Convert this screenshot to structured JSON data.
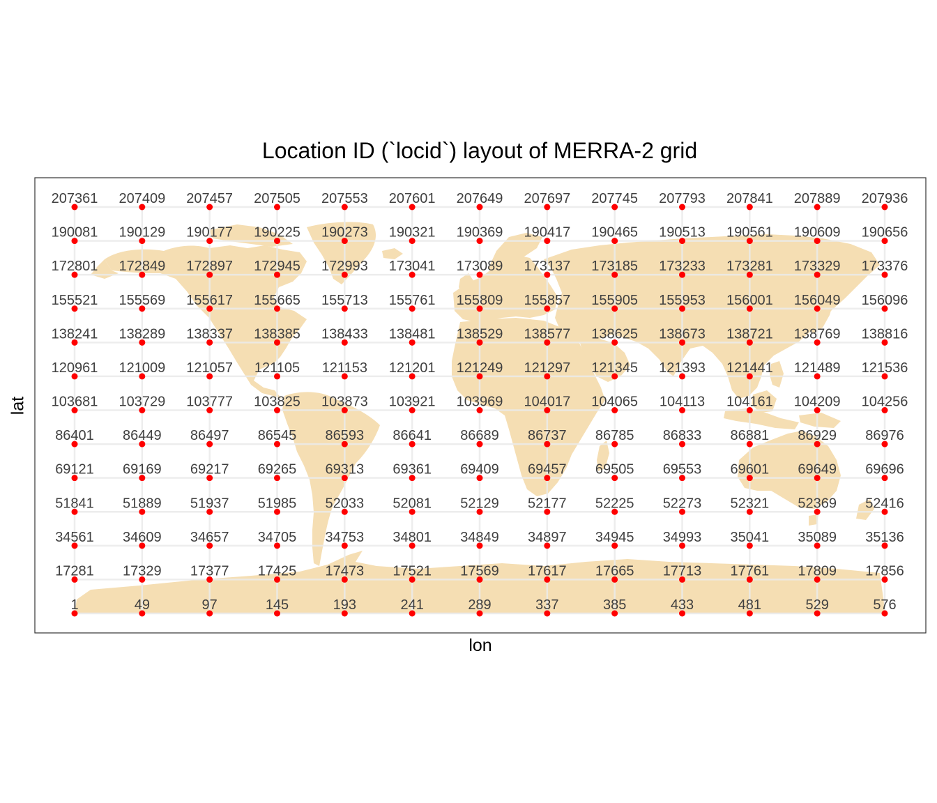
{
  "chart_data": {
    "type": "scatter",
    "title": "Location ID (`locid`) layout of MERRA-2 grid",
    "xlabel": "lon",
    "ylabel": "lat",
    "grid": true,
    "point_color": "#ff0000",
    "land_color": "#f5deb3",
    "gridline_color": "#ebebeb",
    "panel_border_color": "#333333",
    "label_color": "#404040",
    "rows": [
      [
        "207361",
        "207409",
        "207457",
        "207505",
        "207553",
        "207601",
        "207649",
        "207697",
        "207745",
        "207793",
        "207841",
        "207889",
        "207936"
      ],
      [
        "190081",
        "190129",
        "190177",
        "190225",
        "190273",
        "190321",
        "190369",
        "190417",
        "190465",
        "190513",
        "190561",
        "190609",
        "190656"
      ],
      [
        "172801",
        "172849",
        "172897",
        "172945",
        "172993",
        "173041",
        "173089",
        "173137",
        "173185",
        "173233",
        "173281",
        "173329",
        "173376"
      ],
      [
        "155521",
        "155569",
        "155617",
        "155665",
        "155713",
        "155761",
        "155809",
        "155857",
        "155905",
        "155953",
        "156001",
        "156049",
        "156096"
      ],
      [
        "138241",
        "138289",
        "138337",
        "138385",
        "138433",
        "138481",
        "138529",
        "138577",
        "138625",
        "138673",
        "138721",
        "138769",
        "138816"
      ],
      [
        "120961",
        "121009",
        "121057",
        "121105",
        "121153",
        "121201",
        "121249",
        "121297",
        "121345",
        "121393",
        "121441",
        "121489",
        "121536"
      ],
      [
        "103681",
        "103729",
        "103777",
        "103825",
        "103873",
        "103921",
        "103969",
        "104017",
        "104065",
        "104113",
        "104161",
        "104209",
        "104256"
      ],
      [
        "86401",
        "86449",
        "86497",
        "86545",
        "86593",
        "86641",
        "86689",
        "86737",
        "86785",
        "86833",
        "86881",
        "86929",
        "86976"
      ],
      [
        "69121",
        "69169",
        "69217",
        "69265",
        "69313",
        "69361",
        "69409",
        "69457",
        "69505",
        "69553",
        "69601",
        "69649",
        "69696"
      ],
      [
        "51841",
        "51889",
        "51937",
        "51985",
        "52033",
        "52081",
        "52129",
        "52177",
        "52225",
        "52273",
        "52321",
        "52369",
        "52416"
      ],
      [
        "34561",
        "34609",
        "34657",
        "34705",
        "34753",
        "34801",
        "34849",
        "34897",
        "34945",
        "34993",
        "35041",
        "35089",
        "35136"
      ],
      [
        "17281",
        "17329",
        "17377",
        "17425",
        "17473",
        "17521",
        "17569",
        "17617",
        "17665",
        "17713",
        "17761",
        "17809",
        "17856"
      ],
      [
        "1",
        "49",
        "97",
        "145",
        "193",
        "241",
        "289",
        "337",
        "385",
        "433",
        "481",
        "529",
        "576"
      ]
    ]
  }
}
